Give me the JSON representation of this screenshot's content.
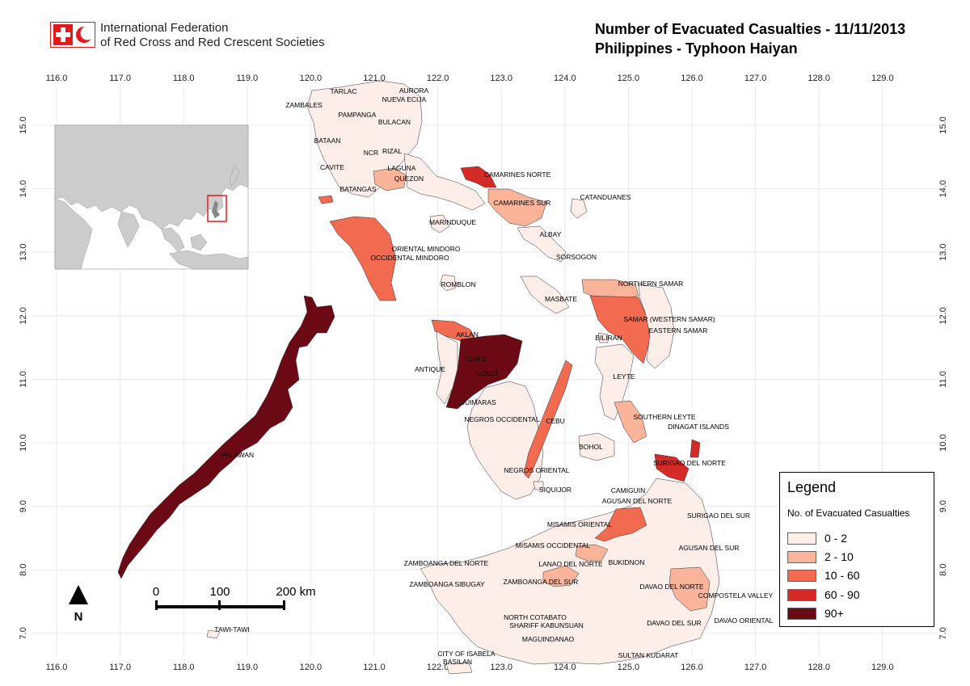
{
  "header": {
    "org_line1": "International Federation",
    "org_line2": "of Red Cross and Red Crescent Societies",
    "title_line1": "Number of Evacuated Casualties - 11/11/2013",
    "title_line2": "Philippines - Typhoon Haiyan"
  },
  "axes": {
    "x_ticks": [
      "116.0",
      "117.0",
      "118.0",
      "119.0",
      "120.0",
      "121.0",
      "122.0",
      "123.0",
      "124.0",
      "125.0",
      "126.0",
      "127.0",
      "128.0",
      "129.0"
    ],
    "y_ticks": [
      "15.0",
      "14.0",
      "13.0",
      "12.0",
      "11.0",
      "10.0",
      "9.0",
      "8.0",
      "7.0"
    ]
  },
  "colors": {
    "c0": "#fdeeea",
    "c1": "#f9b49a",
    "c2": "#f26b50",
    "c3": "#d42a28",
    "c4": "#6b0a14",
    "inset_land": "#cccccc",
    "inset_sea": "#ffffff",
    "highlight": "#e31a1c",
    "grid": "#e6e6e6"
  },
  "legend": {
    "title": "Legend",
    "subtitle": "No. of Evacuated Casualties",
    "classes": [
      {
        "label": "0 - 2",
        "color": "#fdeeea"
      },
      {
        "label": "2 - 10",
        "color": "#f9b49a"
      },
      {
        "label": "10 - 60",
        "color": "#f26b50"
      },
      {
        "label": "60 - 90",
        "color": "#d42a28"
      },
      {
        "label": "90+",
        "color": "#6b0a14"
      }
    ]
  },
  "scale_bar": {
    "t0": "0",
    "t1": "100",
    "t2": "200 km"
  },
  "north": "N",
  "provinces": [
    {
      "name": "TARLAC",
      "cls": 0
    },
    {
      "name": "AURORA",
      "cls": 0
    },
    {
      "name": "NUEVA ECIJA",
      "cls": 0
    },
    {
      "name": "ZAMBALES",
      "cls": 0
    },
    {
      "name": "PAMPANGA",
      "cls": 0
    },
    {
      "name": "BULACAN",
      "cls": 0
    },
    {
      "name": "BATAAN",
      "cls": 0
    },
    {
      "name": "NCR",
      "cls": 0
    },
    {
      "name": "RIZAL",
      "cls": 0
    },
    {
      "name": "CAVITE",
      "cls": 0
    },
    {
      "name": "LAGUNA",
      "cls": 1
    },
    {
      "name": "QUEZON",
      "cls": 0
    },
    {
      "name": "CAMARINES NORTE",
      "cls": 3
    },
    {
      "name": "CAMARINES SUR",
      "cls": 1
    },
    {
      "name": "CATANDUANES",
      "cls": 0
    },
    {
      "name": "BATANGAS",
      "cls": 0
    },
    {
      "name": "MARINDUQUE",
      "cls": 0
    },
    {
      "name": "ALBAY",
      "cls": 0
    },
    {
      "name": "ORIENTAL MINDORO",
      "cls": 0
    },
    {
      "name": "OCCIDENTAL MINDORO",
      "cls": 2
    },
    {
      "name": "SORSOGON",
      "cls": 0
    },
    {
      "name": "ROMBLON",
      "cls": 0
    },
    {
      "name": "NORTHERN SAMAR",
      "cls": 1
    },
    {
      "name": "MASBATE",
      "cls": 0
    },
    {
      "name": "SAMAR (WESTERN SAMAR)",
      "cls": 2
    },
    {
      "name": "EASTERN SAMAR",
      "cls": 1
    },
    {
      "name": "AKLAN",
      "cls": 2
    },
    {
      "name": "BILIRAN",
      "cls": 0
    },
    {
      "name": "CAPIZ",
      "cls": 4
    },
    {
      "name": "ANTIQUE",
      "cls": 0
    },
    {
      "name": "ILOILO",
      "cls": 4
    },
    {
      "name": "LEYTE",
      "cls": 0
    },
    {
      "name": "GUIMARAS",
      "cls": 0
    },
    {
      "name": "NEGROS OCCIDENTAL",
      "cls": 0
    },
    {
      "name": "SOUTHERN LEYTE",
      "cls": 1
    },
    {
      "name": "CEBU",
      "cls": 2
    },
    {
      "name": "DINAGAT ISLANDS",
      "cls": 3
    },
    {
      "name": "PALAWAN",
      "cls": 4
    },
    {
      "name": "BOHOL",
      "cls": 0
    },
    {
      "name": "SURIGAO DEL NORTE",
      "cls": 3
    },
    {
      "name": "NEGROS ORIENTAL",
      "cls": 0
    },
    {
      "name": "SIQUIJOR",
      "cls": 0
    },
    {
      "name": "CAMIGUIN",
      "cls": 0
    },
    {
      "name": "AGUSAN DEL NORTE",
      "cls": 0
    },
    {
      "name": "SURIGAO DEL SUR",
      "cls": 0
    },
    {
      "name": "MISAMIS ORIENTAL",
      "cls": 2
    },
    {
      "name": "MISAMIS OCCIDENTAL",
      "cls": 0
    },
    {
      "name": "AGUSAN DEL SUR",
      "cls": 0
    },
    {
      "name": "ZAMBOANGA DEL NORTE",
      "cls": 0
    },
    {
      "name": "LANAO DEL NORTE",
      "cls": 1
    },
    {
      "name": "BUKIDNON",
      "cls": 0
    },
    {
      "name": "ZAMBOANGA SIBUGAY",
      "cls": 0
    },
    {
      "name": "ZAMBOANGA DEL SUR",
      "cls": 1
    },
    {
      "name": "DAVAO DEL NORTE",
      "cls": 0
    },
    {
      "name": "COMPOSTELA VALLEY",
      "cls": 1
    },
    {
      "name": "NORTH COTABATO",
      "cls": 0
    },
    {
      "name": "SHARIFF KABUNSUAN",
      "cls": 0
    },
    {
      "name": "DAVAO DEL SUR",
      "cls": 0
    },
    {
      "name": "DAVAO ORIENTAL",
      "cls": 0
    },
    {
      "name": "TAWI-TAWI",
      "cls": 0
    },
    {
      "name": "MAGUINDANAO",
      "cls": 0
    },
    {
      "name": "CITY OF ISABELA",
      "cls": 0
    },
    {
      "name": "SULTAN KUDARAT",
      "cls": 0
    },
    {
      "name": "BASILAN",
      "cls": 0
    }
  ]
}
